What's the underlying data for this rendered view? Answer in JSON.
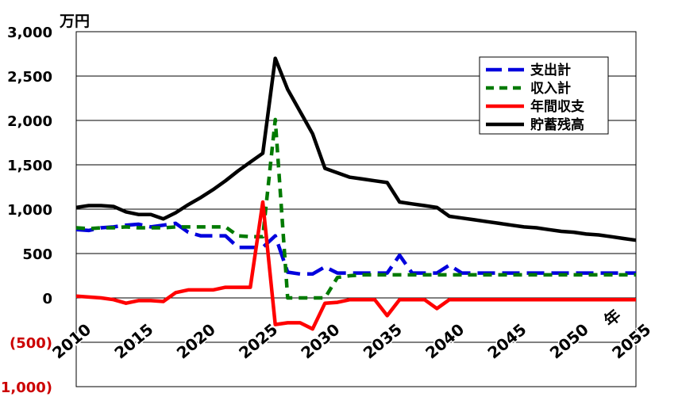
{
  "chart_data": {
    "type": "line",
    "ylabel": "万円",
    "xlabel": "年",
    "ylim": [
      -1000,
      3000
    ],
    "xlim": [
      2010,
      2055
    ],
    "grid": true,
    "legend_position": "top-right",
    "y_ticks": [
      {
        "value": 3000,
        "label": "3,000"
      },
      {
        "value": 2500,
        "label": "2,500"
      },
      {
        "value": 2000,
        "label": "2,000"
      },
      {
        "value": 1500,
        "label": "1,500"
      },
      {
        "value": 1000,
        "label": "1,000"
      },
      {
        "value": 500,
        "label": "500"
      },
      {
        "value": 0,
        "label": "0"
      },
      {
        "value": -500,
        "label": "(500)"
      },
      {
        "value": -1000,
        "label": "(1,000)"
      }
    ],
    "x_ticks": [
      {
        "value": 2010,
        "label": "2010"
      },
      {
        "value": 2015,
        "label": "2015"
      },
      {
        "value": 2020,
        "label": "2020"
      },
      {
        "value": 2025,
        "label": "2025"
      },
      {
        "value": 2030,
        "label": "2030"
      },
      {
        "value": 2035,
        "label": "2035"
      },
      {
        "value": 2040,
        "label": "2040"
      },
      {
        "value": 2045,
        "label": "2045"
      },
      {
        "value": 2050,
        "label": "2050"
      },
      {
        "value": 2055,
        "label": "2055"
      }
    ],
    "colors": {
      "negative_tick": "#cc0000",
      "grid": "#000000"
    },
    "series": [
      {
        "name": "支出計",
        "color": "#0000dd",
        "dash": "long",
        "x": [
          2010,
          2011,
          2012,
          2013,
          2014,
          2015,
          2016,
          2017,
          2018,
          2019,
          2020,
          2021,
          2022,
          2023,
          2024,
          2025,
          2026,
          2027,
          2028,
          2029,
          2030,
          2031,
          2032,
          2033,
          2034,
          2035,
          2036,
          2037,
          2038,
          2039,
          2040,
          2041,
          2042,
          2043,
          2044,
          2045,
          2046,
          2047,
          2048,
          2049,
          2050,
          2051,
          2052,
          2053,
          2054,
          2055
        ],
        "y": [
          770,
          760,
          790,
          800,
          820,
          830,
          800,
          820,
          840,
          740,
          700,
          700,
          700,
          570,
          570,
          570,
          700,
          290,
          270,
          270,
          350,
          280,
          280,
          280,
          280,
          280,
          480,
          280,
          280,
          280,
          370,
          280,
          280,
          280,
          280,
          280,
          280,
          280,
          280,
          280,
          280,
          280,
          280,
          280,
          280,
          280
        ]
      },
      {
        "name": "収入計",
        "color": "#007a00",
        "dash": "short",
        "x": [
          2010,
          2011,
          2012,
          2013,
          2014,
          2015,
          2016,
          2017,
          2018,
          2019,
          2020,
          2021,
          2022,
          2023,
          2024,
          2025,
          2026,
          2027,
          2028,
          2029,
          2030,
          2031,
          2032,
          2033,
          2034,
          2035,
          2036,
          2037,
          2038,
          2039,
          2040,
          2041,
          2042,
          2043,
          2044,
          2045,
          2046,
          2047,
          2048,
          2049,
          2050,
          2051,
          2052,
          2053,
          2054,
          2055
        ],
        "y": [
          790,
          780,
          790,
          790,
          800,
          790,
          790,
          790,
          800,
          800,
          800,
          800,
          800,
          700,
          690,
          690,
          2010,
          0,
          0,
          0,
          0,
          230,
          250,
          260,
          260,
          260,
          260,
          260,
          260,
          260,
          260,
          260,
          260,
          260,
          260,
          260,
          260,
          260,
          260,
          260,
          260,
          260,
          260,
          260,
          260,
          260
        ]
      },
      {
        "name": "年間収支",
        "color": "#ff0000",
        "dash": "solid",
        "x": [
          2010,
          2011,
          2012,
          2013,
          2014,
          2015,
          2016,
          2017,
          2018,
          2019,
          2020,
          2021,
          2022,
          2023,
          2024,
          2025,
          2026,
          2027,
          2028,
          2029,
          2030,
          2031,
          2032,
          2033,
          2034,
          2035,
          2036,
          2037,
          2038,
          2039,
          2040,
          2041,
          2042,
          2043,
          2044,
          2045,
          2046,
          2047,
          2048,
          2049,
          2050,
          2051,
          2052,
          2053,
          2054,
          2055
        ],
        "y": [
          20,
          10,
          0,
          -20,
          -60,
          -30,
          -30,
          -40,
          60,
          90,
          90,
          90,
          120,
          120,
          120,
          1080,
          -300,
          -280,
          -280,
          -350,
          -60,
          -50,
          -20,
          -20,
          -20,
          -200,
          -20,
          -20,
          -20,
          -120,
          -20,
          -20,
          -20,
          -20,
          -20,
          -20,
          -20,
          -20,
          -20,
          -20,
          -20,
          -20,
          -20,
          -20,
          -20,
          -20
        ]
      },
      {
        "name": "貯蓄残高",
        "color": "#000000",
        "dash": "solid",
        "x": [
          2010,
          2011,
          2012,
          2013,
          2014,
          2015,
          2016,
          2017,
          2018,
          2019,
          2020,
          2021,
          2022,
          2023,
          2024,
          2025,
          2026,
          2027,
          2028,
          2029,
          2030,
          2031,
          2032,
          2033,
          2034,
          2035,
          2036,
          2037,
          2038,
          2039,
          2040,
          2041,
          2042,
          2043,
          2044,
          2045,
          2046,
          2047,
          2048,
          2049,
          2050,
          2051,
          2052,
          2053,
          2054,
          2055
        ],
        "y": [
          1020,
          1040,
          1040,
          1030,
          970,
          940,
          940,
          890,
          960,
          1050,
          1130,
          1220,
          1320,
          1430,
          1530,
          1630,
          2700,
          2350,
          2100,
          1850,
          1460,
          1410,
          1360,
          1340,
          1320,
          1300,
          1080,
          1060,
          1040,
          1020,
          920,
          900,
          880,
          860,
          840,
          820,
          800,
          790,
          770,
          750,
          740,
          720,
          710,
          690,
          670,
          650
        ]
      }
    ]
  }
}
